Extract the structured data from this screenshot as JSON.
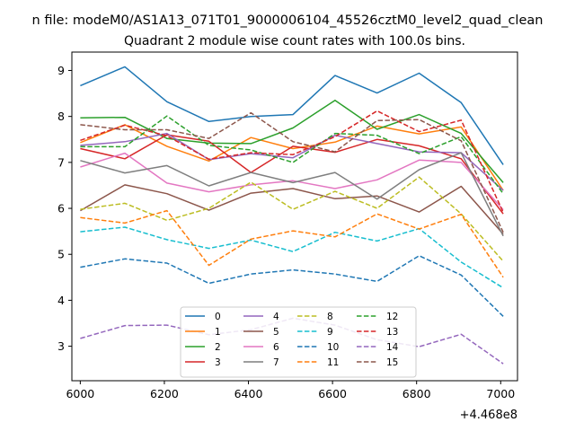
{
  "figure": {
    "suptitle": "n file: modeM0/AS1A13_071T01_9000006104_45526cztM0_level2_quad_clean"
  },
  "chart_data": {
    "type": "line",
    "title": "Quadrant 2 module wise count rates with 100.0s bins.",
    "xlabel": "",
    "ylabel": "",
    "x_offset_label": "+4.468e8",
    "xlim": [
      5980,
      7040
    ],
    "ylim": [
      2.25,
      9.4
    ],
    "xticks": [
      6000,
      6200,
      6400,
      6600,
      6800,
      7000
    ],
    "yticks": [
      3,
      4,
      5,
      6,
      7,
      8,
      9
    ],
    "grid": false,
    "legend": {
      "position": "lower center",
      "columns": 4
    },
    "x": [
      6000,
      6106,
      6206,
      6306,
      6406,
      6506,
      6606,
      6706,
      6806,
      6906,
      7006
    ],
    "series": [
      {
        "name": "0",
        "color": "#1f77b4",
        "dash": "solid",
        "values": [
          8.67,
          9.08,
          8.32,
          7.89,
          8.0,
          8.04,
          8.89,
          8.51,
          8.94,
          8.3,
          6.95
        ]
      },
      {
        "name": "1",
        "color": "#ff7f0e",
        "dash": "solid",
        "values": [
          7.43,
          7.82,
          7.35,
          7.03,
          7.54,
          7.3,
          7.44,
          7.79,
          7.62,
          7.77,
          6.39
        ]
      },
      {
        "name": "2",
        "color": "#2ca02c",
        "dash": "solid",
        "values": [
          7.97,
          7.98,
          7.52,
          7.42,
          7.41,
          7.75,
          8.35,
          7.72,
          8.04,
          7.63,
          6.56
        ]
      },
      {
        "name": "3",
        "color": "#d62728",
        "dash": "solid",
        "values": [
          7.3,
          7.08,
          7.6,
          7.46,
          6.78,
          7.35,
          7.22,
          7.5,
          7.36,
          7.08,
          5.88
        ]
      },
      {
        "name": "4",
        "color": "#9467bd",
        "dash": "solid",
        "values": [
          7.37,
          7.45,
          7.63,
          7.06,
          7.19,
          7.1,
          7.59,
          7.41,
          7.23,
          7.21,
          6.39
        ]
      },
      {
        "name": "5",
        "color": "#8c564b",
        "dash": "solid",
        "values": [
          5.95,
          6.51,
          6.32,
          5.96,
          6.33,
          6.43,
          6.21,
          6.27,
          5.92,
          6.48,
          5.44
        ]
      },
      {
        "name": "6",
        "color": "#e377c2",
        "dash": "solid",
        "values": [
          6.9,
          7.2,
          6.55,
          6.36,
          6.51,
          6.6,
          6.43,
          6.62,
          7.05,
          7.0,
          5.97
        ]
      },
      {
        "name": "7",
        "color": "#7f7f7f",
        "dash": "solid",
        "values": [
          7.04,
          6.77,
          6.93,
          6.49,
          6.78,
          6.56,
          6.78,
          6.2,
          6.84,
          7.21,
          5.4
        ]
      },
      {
        "name": "8",
        "color": "#bcbd22",
        "dash": "dashed",
        "values": [
          5.98,
          6.11,
          5.74,
          6.0,
          6.57,
          5.98,
          6.37,
          6.0,
          6.68,
          5.88,
          4.85
        ]
      },
      {
        "name": "9",
        "color": "#17becf",
        "dash": "dashed",
        "values": [
          5.49,
          5.59,
          5.32,
          5.13,
          5.31,
          5.06,
          5.48,
          5.29,
          5.56,
          4.83,
          4.27
        ]
      },
      {
        "name": "10",
        "color": "#1f77b4",
        "dash": "dashed",
        "values": [
          4.72,
          4.9,
          4.81,
          4.37,
          4.57,
          4.66,
          4.57,
          4.41,
          4.97,
          4.55,
          3.65
        ]
      },
      {
        "name": "11",
        "color": "#ff7f0e",
        "dash": "dashed",
        "values": [
          5.8,
          5.68,
          5.95,
          4.76,
          5.33,
          5.51,
          5.38,
          5.88,
          5.55,
          5.87,
          4.5
        ]
      },
      {
        "name": "12",
        "color": "#2ca02c",
        "dash": "dashed",
        "values": [
          7.34,
          7.34,
          8.01,
          7.37,
          7.27,
          7.0,
          7.63,
          7.59,
          7.19,
          7.56,
          6.32
        ]
      },
      {
        "name": "13",
        "color": "#d62728",
        "dash": "dashed",
        "values": [
          7.48,
          7.81,
          7.58,
          7.07,
          7.21,
          7.17,
          7.56,
          8.12,
          7.67,
          7.92,
          5.91
        ]
      },
      {
        "name": "14",
        "color": "#9467bd",
        "dash": "dashed",
        "values": [
          3.17,
          3.45,
          3.46,
          3.25,
          3.36,
          3.61,
          3.46,
          3.14,
          2.99,
          3.26,
          2.62
        ]
      },
      {
        "name": "15",
        "color": "#8c564b",
        "dash": "dashed",
        "values": [
          7.82,
          7.71,
          7.71,
          7.52,
          8.08,
          7.45,
          7.23,
          7.91,
          7.93,
          7.47,
          5.48
        ]
      }
    ]
  }
}
